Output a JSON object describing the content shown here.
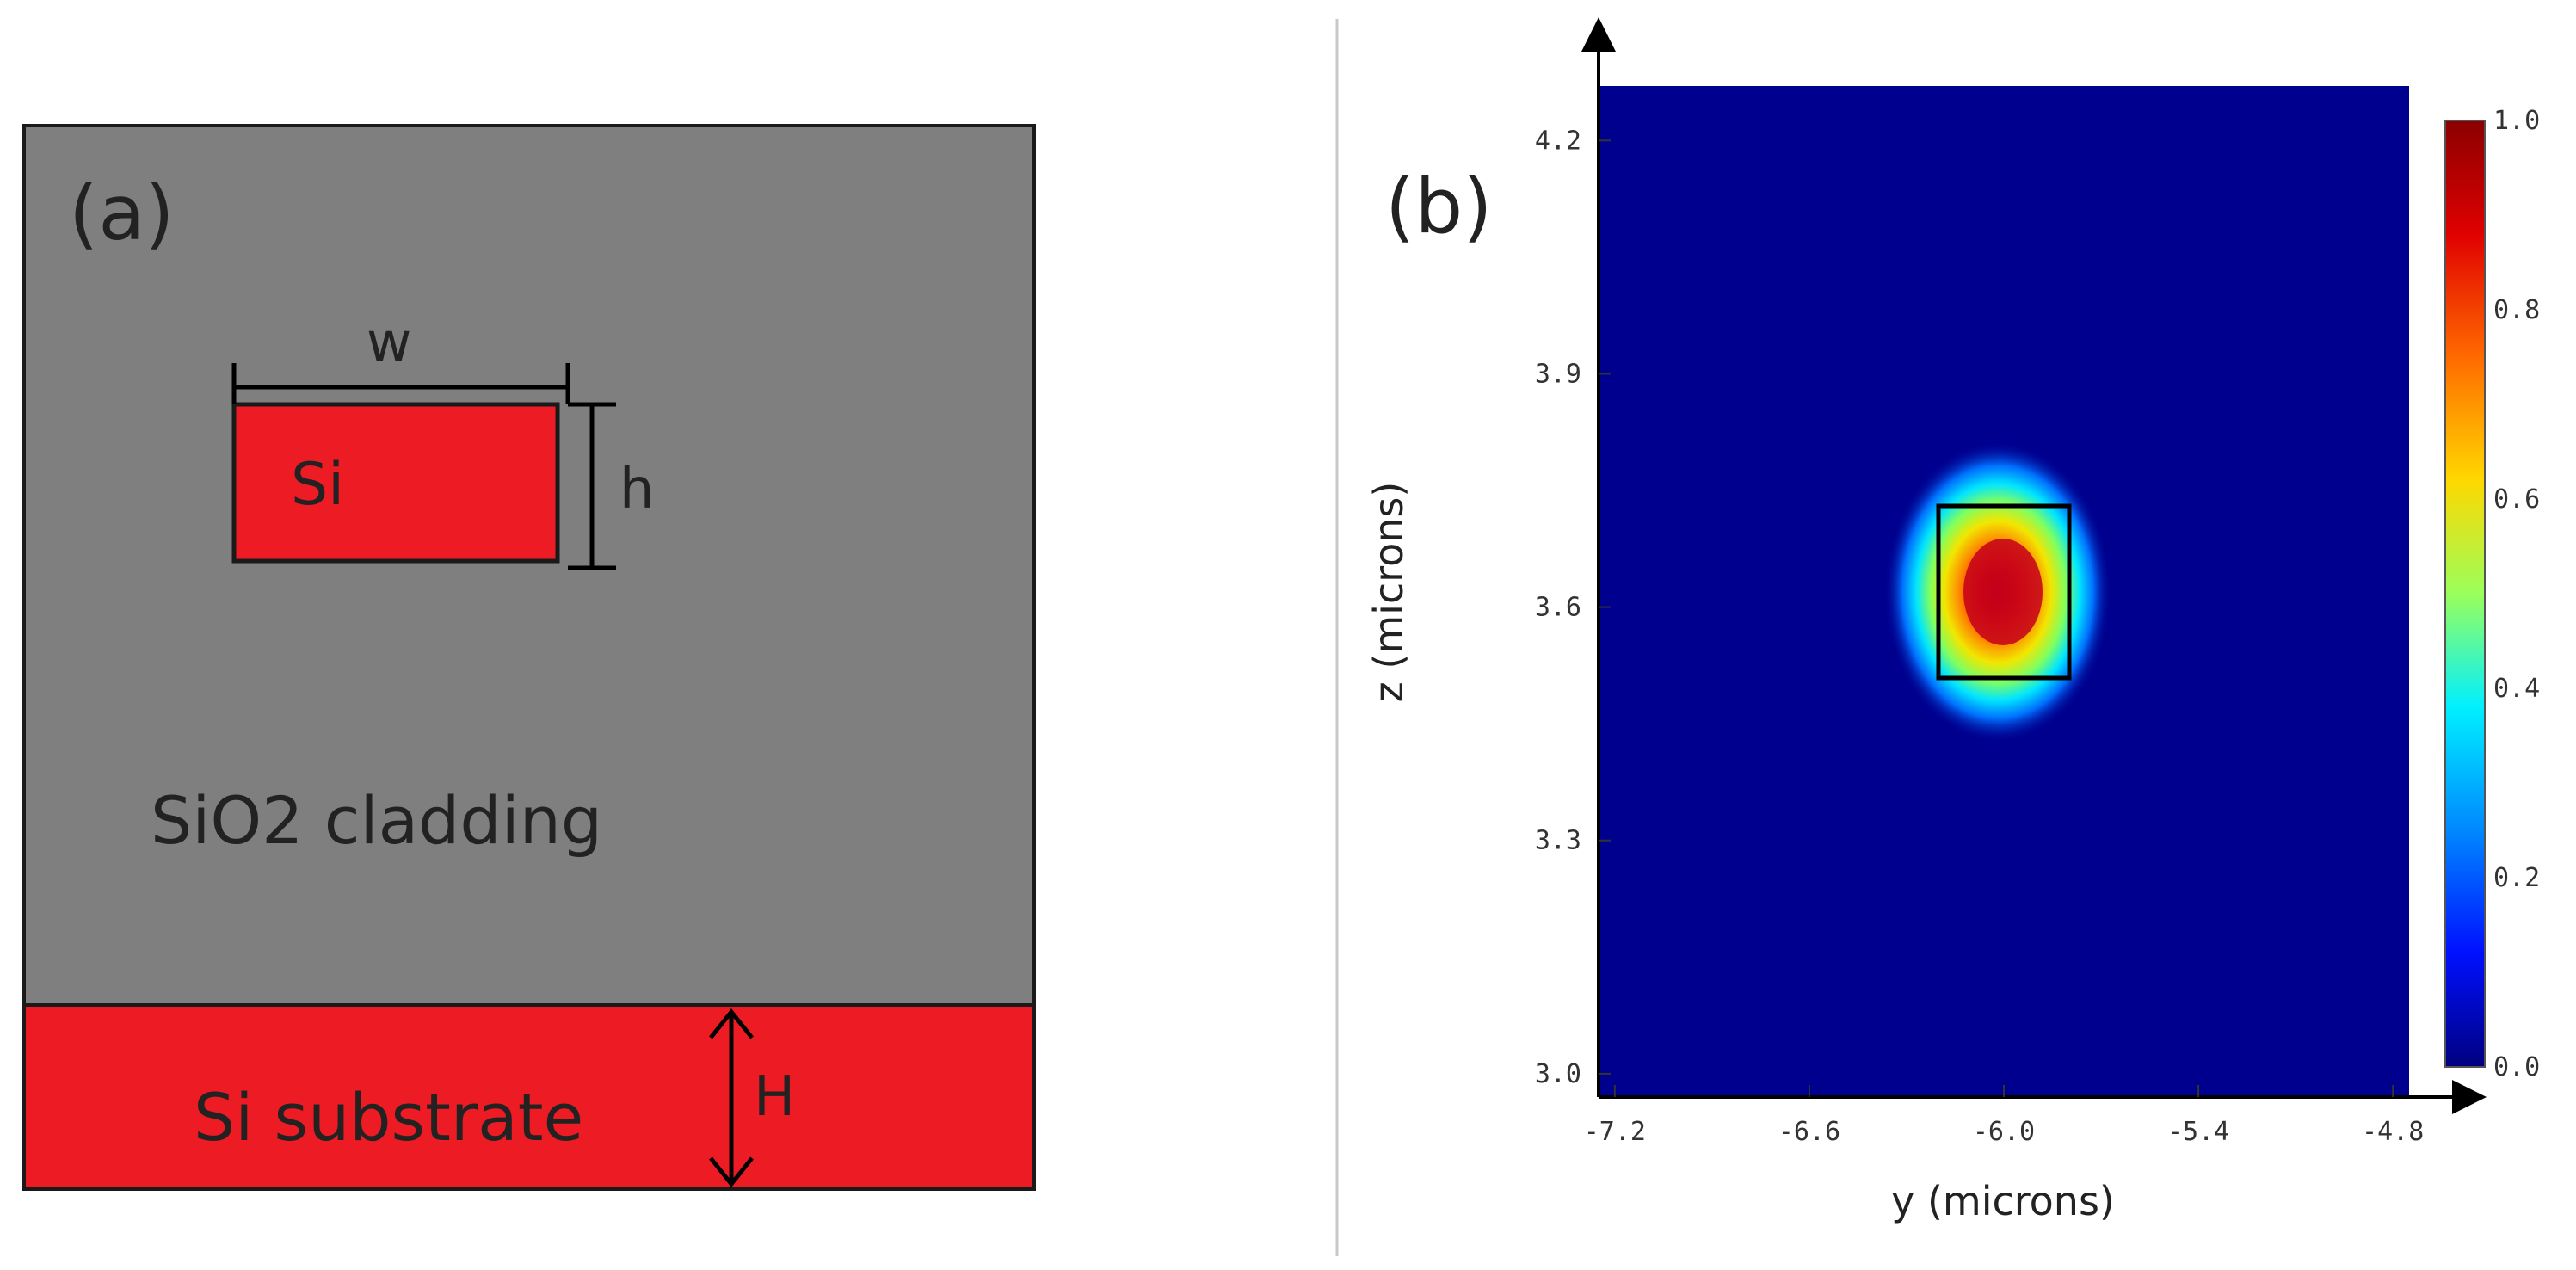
{
  "panel_a": {
    "label": "(a)",
    "waveguide_label": "Si",
    "width_label": "w",
    "height_label": "h",
    "cladding_label": "SiO2 cladding",
    "substrate_label": "Si substrate",
    "substrate_height_label": "H",
    "colors": {
      "cladding": "#7f7f7f",
      "silicon": "#ed1c24",
      "outline": "#1a1a1a"
    }
  },
  "panel_b": {
    "label": "(b)",
    "xlabel": "y (microns)",
    "ylabel": "z (microns)",
    "x_ticks": [
      "-7.2",
      "-6.6",
      "-6.0",
      "-5.4",
      "-4.8"
    ],
    "y_ticks": [
      "4.2",
      "3.9",
      "3.6",
      "3.3",
      "3.0"
    ],
    "colorbar_ticks": [
      "1.0",
      "0.8",
      "0.6",
      "0.4",
      "0.2",
      "0.0"
    ]
  },
  "chart_data": {
    "type": "heatmap",
    "xlabel": "y (microns)",
    "ylabel": "z (microns)",
    "xlim": [
      -7.25,
      -4.75
    ],
    "ylim": [
      2.97,
      4.27
    ],
    "x_ticks": [
      -7.2,
      -6.6,
      -6.0,
      -5.4,
      -4.8
    ],
    "y_ticks": [
      3.0,
      3.3,
      3.6,
      3.9,
      4.2
    ],
    "colorbar": {
      "min": 0.0,
      "max": 1.0,
      "ticks": [
        0.0,
        0.2,
        0.4,
        0.6,
        0.8,
        1.0
      ],
      "colormap": "jet"
    },
    "mode": {
      "center_y": -5.99,
      "center_z": 3.61,
      "peak": 1.0
    },
    "waveguide_box": {
      "y_min": -6.15,
      "y_max": -5.83,
      "z_min": 3.5,
      "z_max": 3.72
    }
  }
}
